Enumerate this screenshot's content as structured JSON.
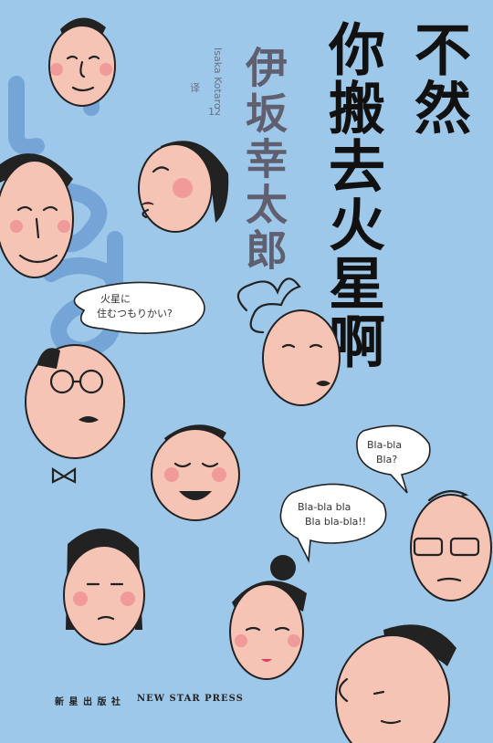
{
  "title_line_1": "不然",
  "title_line_2": "你搬去火星啊",
  "author": "伊坂幸太郎",
  "author_romaji": "Isaka Kotaro",
  "volume": "12",
  "translator": "译",
  "bubble_jp_1": "火星に",
  "bubble_jp_2": "住むつもりかい?",
  "bubble_bla_1": "Bla-bla",
  "bubble_bla_2": "Bla?",
  "bubble_bla_3": "Bla-bla bla",
  "bubble_bla_4": "Bla bla-bla!!",
  "publisher_cn": "新 星 出 版 社",
  "publisher_en": "NEW STAR PRESS",
  "colors": {
    "background": "#9ec8ea",
    "skin": "#f6c4b4",
    "blush": "#f19a9a",
    "title": "#111111",
    "author": "#5f5f6f",
    "kana": "#6f9fd4"
  }
}
